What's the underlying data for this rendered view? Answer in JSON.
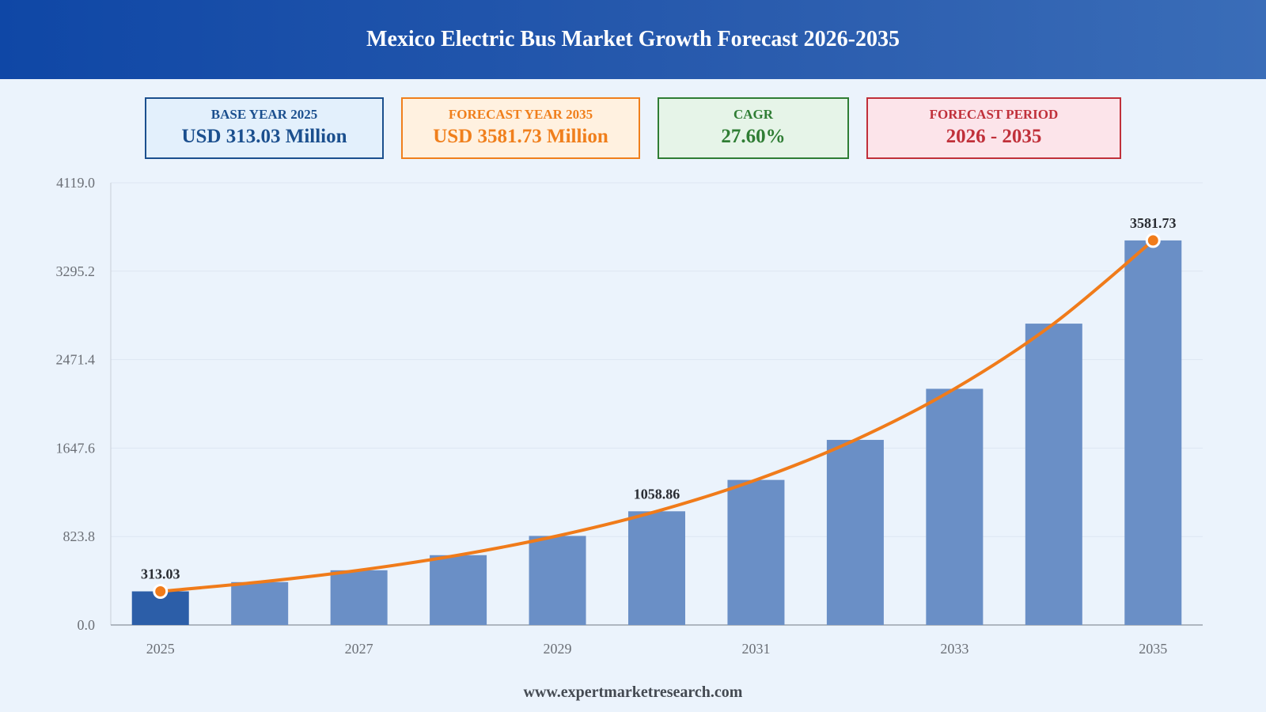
{
  "header": {
    "title": "Mexico Electric Bus Market Growth Forecast 2026-2035"
  },
  "cards": {
    "base": {
      "label": "BASE YEAR 2025",
      "value": "USD 313.03 Million"
    },
    "forecast": {
      "label": "FORECAST YEAR 2035",
      "value": "USD 3581.73 Million"
    },
    "cagr": {
      "label": "CAGR",
      "value": "27.60%"
    },
    "period": {
      "label": "FORECAST PERIOD",
      "value": "2026 - 2035"
    }
  },
  "footer": {
    "source": "www.expertmarketresearch.com"
  },
  "colors": {
    "base_bar": "#2c5ea8",
    "bar": "#6a8fc6",
    "trend_line": "#f07b1a",
    "grid": "#dde6f2",
    "axis_text": "#6b6f76"
  },
  "chart_data": {
    "type": "bar",
    "categories": [
      "2025",
      "2026",
      "2027",
      "2028",
      "2029",
      "2030",
      "2031",
      "2032",
      "2033",
      "2034",
      "2035"
    ],
    "values": [
      313.03,
      399.4,
      509.6,
      650.3,
      829.8,
      1058.86,
      1351.1,
      1724.0,
      2199.8,
      2806.9,
      3581.73
    ],
    "x_tick_labels": [
      "2025",
      "",
      "2027",
      "",
      "2029",
      "",
      "2031",
      "",
      "2033",
      "",
      "2035"
    ],
    "y_ticks": [
      0.0,
      823.8,
      1647.6,
      2471.4,
      3295.2,
      4119.0
    ],
    "y_tick_labels": [
      "0.0",
      "823.8",
      "1647.6",
      "2471.4",
      "3295.2",
      "4119.0"
    ],
    "ylim": [
      0,
      4119.0
    ],
    "data_labels": [
      {
        "index": 0,
        "text": "313.03"
      },
      {
        "index": 5,
        "text": "1058.86"
      },
      {
        "index": 10,
        "text": "3581.73"
      }
    ],
    "trend_line": true,
    "grid": true,
    "xlabel": "",
    "ylabel": ""
  }
}
